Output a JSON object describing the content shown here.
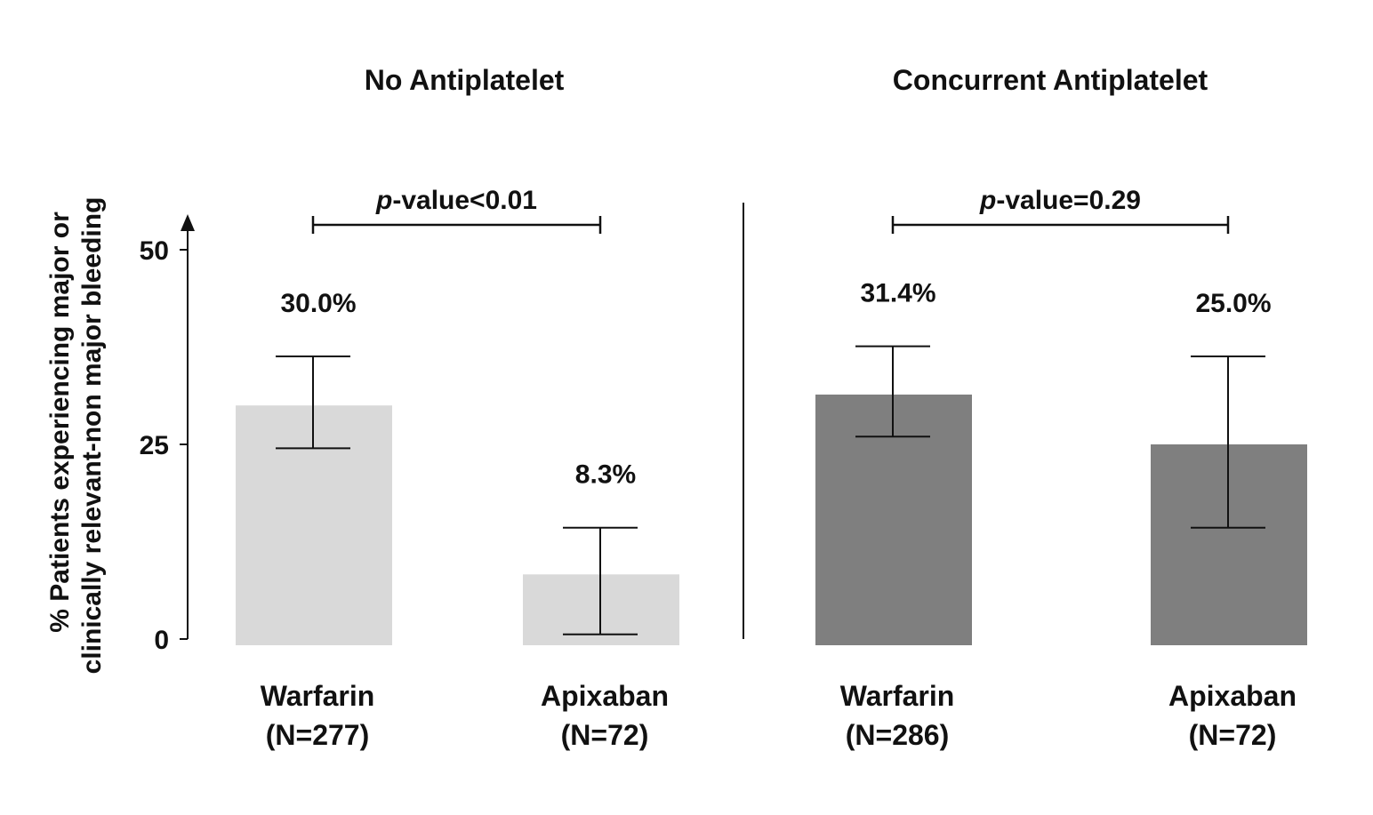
{
  "chart_data": {
    "type": "bar",
    "ylabel": [
      "% Patients experiencing major or",
      "clinically relevant-non major bleeding"
    ],
    "ylim": [
      0,
      50
    ],
    "yticks": [
      0,
      25,
      50
    ],
    "grid": false,
    "groups": [
      {
        "title": "No Antiplatelet",
        "pvalue_prefix": "p",
        "pvalue_text": "-value<0.01",
        "color": "#d9d9d9",
        "bars": [
          {
            "category": "Warfarin",
            "n_label": "(N=277)",
            "value": 30.0,
            "value_label": "30.0%",
            "ci_low": 24.5,
            "ci_high": 36.3
          },
          {
            "category": "Apixaban",
            "n_label": "(N=72)",
            "value": 8.3,
            "value_label": "8.3%",
            "ci_low": 0.6,
            "ci_high": 14.3
          }
        ]
      },
      {
        "title": "Concurrent Antiplatelet",
        "pvalue_prefix": "p",
        "pvalue_text": "-value=0.29",
        "color": "#7f7f7f",
        "bars": [
          {
            "category": "Warfarin",
            "n_label": "(N=286)",
            "value": 31.4,
            "value_label": "31.4%",
            "ci_low": 26.0,
            "ci_high": 37.6
          },
          {
            "category": "Apixaban",
            "n_label": "(N=72)",
            "value": 25.0,
            "value_label": "25.0%",
            "ci_low": 14.3,
            "ci_high": 36.3
          }
        ]
      }
    ]
  }
}
